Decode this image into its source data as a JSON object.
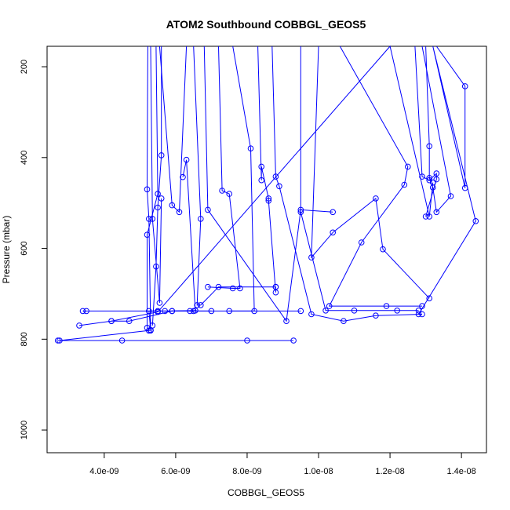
{
  "chart_data": {
    "type": "line",
    "title": "ATOM2 Southbound COBBGL_GEOS5",
    "xlabel": "COBBGL_GEOS5",
    "ylabel": "Pressure (mbar)",
    "xlim": [
      2.4e-09,
      1.47e-08
    ],
    "ylim": [
      1050,
      155
    ],
    "y_reversed": true,
    "x_ticks": [
      4e-09,
      6e-09,
      8e-09,
      1e-08,
      1.2e-08,
      1.4e-08
    ],
    "x_tick_labels": [
      "4.0e-09",
      "6.0e-09",
      "8.0e-09",
      "1.0e-08",
      "1.2e-08",
      "1.4e-08"
    ],
    "y_ticks": [
      200,
      400,
      600,
      800,
      1000
    ],
    "y_tick_labels": [
      "200",
      "400",
      "600",
      "800",
      "1000"
    ],
    "series_color": "#0000ff",
    "marker": "open-circle",
    "grid": false,
    "legend": "none",
    "series": [
      {
        "points": [
          [
            2.7e-09,
            803
          ],
          [
            4.5e-09,
            803
          ],
          [
            8e-09,
            803
          ],
          [
            9.3e-09,
            803
          ]
        ]
      },
      {
        "points": [
          [
            2.75e-09,
            803
          ],
          [
            5.25e-09,
            781
          ],
          [
            5.3e-09,
            781
          ],
          [
            5.25e-09,
            781
          ]
        ]
      },
      {
        "points": [
          [
            5.22e-09,
            155
          ],
          [
            5.2e-09,
            470
          ],
          [
            5.25e-09,
            535
          ],
          [
            5.3e-09,
            780
          ],
          [
            5.25e-09,
            738
          ],
          [
            5.5e-09,
            738
          ],
          [
            9.5e-09,
            738
          ]
        ]
      },
      {
        "points": [
          [
            3.4e-09,
            738
          ],
          [
            3.5e-09,
            738
          ],
          [
            5.7e-09,
            738
          ],
          [
            7e-09,
            738
          ]
        ]
      },
      {
        "points": [
          [
            3.3e-09,
            770
          ],
          [
            4.2e-09,
            760
          ],
          [
            4.7e-09,
            760
          ],
          [
            5.9e-09,
            738
          ],
          [
            6.4e-09,
            738
          ],
          [
            6.5e-09,
            738
          ]
        ]
      },
      {
        "points": [
          [
            5.6e-09,
            155
          ],
          [
            5.6e-09,
            395
          ],
          [
            5.5e-09,
            510
          ],
          [
            5.45e-09,
            640
          ],
          [
            5.35e-09,
            770
          ]
        ]
      },
      {
        "points": [
          [
            5.45e-09,
            155
          ],
          [
            5.5e-09,
            480
          ],
          [
            5.2e-09,
            570
          ],
          [
            5.2e-09,
            775
          ]
        ]
      },
      {
        "points": [
          [
            5.3e-09,
            155
          ],
          [
            5.35e-09,
            535
          ],
          [
            5.55e-09,
            720
          ],
          [
            5.6e-09,
            490
          ]
        ]
      },
      {
        "points": [
          [
            6.3e-09,
            155
          ],
          [
            6.1e-09,
            520
          ],
          [
            5.9e-09,
            505
          ],
          [
            5.55e-09,
            155
          ]
        ]
      },
      {
        "points": [
          [
            6.5e-09,
            155
          ],
          [
            6.7e-09,
            535
          ],
          [
            6.6e-09,
            725
          ],
          [
            6.7e-09,
            725
          ],
          [
            7.2e-09,
            685
          ],
          [
            8.8e-09,
            685
          ]
        ]
      },
      {
        "points": [
          [
            6.8e-09,
            155
          ],
          [
            6.9e-09,
            515
          ],
          [
            9.1e-09,
            760
          ],
          [
            9.5e-09,
            515
          ],
          [
            1.04e-08,
            520
          ]
        ]
      },
      {
        "points": [
          [
            7.2e-09,
            155
          ],
          [
            7.3e-09,
            473
          ],
          [
            7.5e-09,
            480
          ],
          [
            7.8e-09,
            688
          ],
          [
            7.6e-09,
            688
          ],
          [
            6.9e-09,
            685
          ]
        ]
      },
      {
        "points": [
          [
            8.3e-09,
            155
          ],
          [
            8.4e-09,
            450
          ],
          [
            8.4e-09,
            420
          ],
          [
            8.6e-09,
            490
          ],
          [
            8.6e-09,
            495
          ],
          [
            8.8e-09,
            697
          ],
          [
            8.8e-09,
            685
          ]
        ]
      },
      {
        "points": [
          [
            8.7e-09,
            155
          ],
          [
            8.8e-09,
            442
          ],
          [
            8.9e-09,
            463
          ],
          [
            9.8e-09,
            745
          ],
          [
            1.07e-08,
            760
          ],
          [
            1.16e-08,
            748
          ],
          [
            1.29e-08,
            745
          ]
        ]
      },
      {
        "points": [
          [
            9.5e-09,
            155
          ],
          [
            9.5e-09,
            520
          ],
          [
            1.02e-08,
            737
          ],
          [
            1.1e-08,
            737
          ],
          [
            1.22e-08,
            737
          ],
          [
            1.28e-08,
            737
          ]
        ]
      },
      {
        "points": [
          [
            1e-08,
            155
          ],
          [
            9.8e-09,
            620
          ],
          [
            1.04e-08,
            565
          ],
          [
            1.16e-08,
            490
          ],
          [
            1.18e-08,
            602
          ],
          [
            1.31e-08,
            710
          ]
        ]
      },
      {
        "points": [
          [
            1.06e-08,
            155
          ],
          [
            1.25e-08,
            420
          ],
          [
            1.24e-08,
            460
          ],
          [
            1.12e-08,
            587
          ],
          [
            1.03e-08,
            727
          ],
          [
            1.19e-08,
            727
          ],
          [
            1.29e-08,
            727
          ]
        ]
      },
      {
        "points": [
          [
            1.27e-08,
            155
          ],
          [
            1.29e-08,
            442
          ],
          [
            1.31e-08,
            450
          ],
          [
            1.33e-08,
            435
          ],
          [
            1.33e-08,
            448
          ],
          [
            1.3e-08,
            530
          ]
        ]
      },
      {
        "points": [
          [
            1.3e-08,
            155
          ],
          [
            1.31e-08,
            375
          ],
          [
            1.31e-08,
            445
          ],
          [
            1.32e-08,
            466
          ],
          [
            1.33e-08,
            520
          ],
          [
            1.37e-08,
            485
          ],
          [
            1.29e-08,
            155
          ]
        ]
      },
      {
        "points": [
          [
            1.33e-08,
            155
          ],
          [
            1.41e-08,
            243
          ],
          [
            1.41e-08,
            467
          ],
          [
            1.32e-08,
            155
          ],
          [
            1.44e-08,
            540
          ],
          [
            1.28e-08,
            745
          ]
        ]
      },
      {
        "points": [
          [
            4.2e-09,
            760
          ],
          [
            5.5e-09,
            740
          ],
          [
            1.2e-08,
            155
          ],
          [
            1.31e-08,
            530
          ],
          [
            1.32e-08,
            455
          ]
        ]
      },
      {
        "points": [
          [
            6.2e-09,
            443
          ],
          [
            6.3e-09,
            405
          ],
          [
            6.55e-09,
            737
          ],
          [
            5.9e-09,
            738
          ]
        ]
      },
      {
        "points": [
          [
            7.6e-09,
            155
          ],
          [
            8.1e-09,
            380
          ],
          [
            8.2e-09,
            738
          ],
          [
            7.5e-09,
            738
          ]
        ]
      }
    ]
  }
}
